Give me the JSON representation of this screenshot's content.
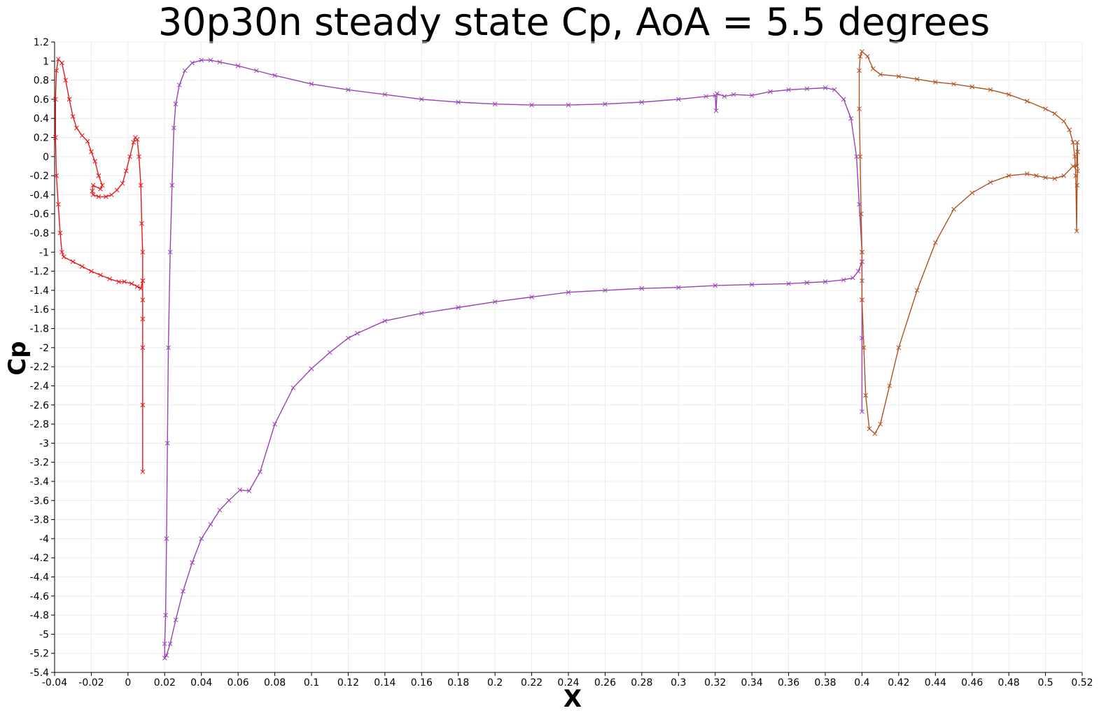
{
  "chart_data": {
    "type": "line",
    "title": "30p30n steady state Cp,  AoA = 5.5 degrees",
    "xlabel": "X",
    "ylabel": "Cp",
    "xlim": [
      -0.04,
      0.52
    ],
    "ylim": [
      -5.4,
      1.2
    ],
    "x_ticks": [
      -0.04,
      -0.02,
      0,
      0.02,
      0.04,
      0.06,
      0.08,
      0.1,
      0.12,
      0.14,
      0.16,
      0.18,
      0.2,
      0.22,
      0.24,
      0.26,
      0.28,
      0.3,
      0.32,
      0.34,
      0.36,
      0.38,
      0.4,
      0.42,
      0.44,
      0.46,
      0.48,
      0.5,
      0.52
    ],
    "x_tick_labels": [
      "-0.04",
      "-0.02",
      "0",
      "0.02",
      "0.04",
      "0.06",
      "0.08",
      "0.1",
      "0.12",
      "0.14",
      "0.16",
      "0.18",
      "0.2",
      "0.22",
      "0.24",
      "0.26",
      "0.28",
      "0.3",
      "0.32",
      "0.34",
      "0.36",
      "0.38",
      "0.4",
      "0.42",
      "0.44",
      "0.46",
      "0.48",
      "0.5",
      "0.52"
    ],
    "y_ticks": [
      1.2,
      1,
      0.8,
      0.6,
      0.4,
      0.2,
      0,
      -0.2,
      -0.4,
      -0.6,
      -0.8,
      -1,
      -1.2,
      -1.4,
      -1.6,
      -1.8,
      -2,
      -2.2,
      -2.4,
      -2.6,
      -2.8,
      -3,
      -3.2,
      -3.4,
      -3.6,
      -3.8,
      -4,
      -4.2,
      -4.4,
      -4.6,
      -4.8,
      -5,
      -5.2,
      -5.4
    ],
    "y_tick_labels": [
      "1.2",
      "1",
      "0.8",
      "0.6",
      "0.4",
      "0.2",
      "0",
      "-0.2",
      "-0.4",
      "-0.6",
      "-0.8",
      "-1",
      "-1.2",
      "-1.4",
      "-1.6",
      "-1.8",
      "-2",
      "-2.2",
      "-2.4",
      "-2.6",
      "-2.8",
      "-3",
      "-3.2",
      "-3.4",
      "-3.6",
      "-3.8",
      "-4",
      "-4.2",
      "-4.4",
      "-4.6",
      "-4.8",
      "-5",
      "-5.2",
      "-5.4"
    ],
    "grid": true,
    "legend": "none",
    "marker": "x",
    "series": [
      {
        "color": "#e4191c",
        "points": [
          [
            0.008,
            -3.3
          ],
          [
            0.008,
            -2.6
          ],
          [
            0.008,
            -2.0
          ],
          [
            0.008,
            -1.7
          ],
          [
            0.008,
            -1.5
          ],
          [
            0.008,
            -1.3
          ],
          [
            0.007,
            -1.38
          ],
          [
            0.005,
            -1.36
          ],
          [
            0.002,
            -1.33
          ],
          [
            -0.002,
            -1.31
          ],
          [
            -0.005,
            -1.31
          ],
          [
            -0.01,
            -1.28
          ],
          [
            -0.015,
            -1.24
          ],
          [
            -0.02,
            -1.2
          ],
          [
            -0.025,
            -1.15
          ],
          [
            -0.03,
            -1.1
          ],
          [
            -0.035,
            -1.05
          ],
          [
            -0.036,
            -1.0
          ],
          [
            -0.037,
            -0.8
          ],
          [
            -0.038,
            -0.5
          ],
          [
            -0.039,
            -0.2
          ],
          [
            -0.0395,
            0.2
          ],
          [
            -0.0395,
            0.6
          ],
          [
            -0.039,
            0.9
          ],
          [
            -0.038,
            1.02
          ],
          [
            -0.036,
            0.98
          ],
          [
            -0.034,
            0.8
          ],
          [
            -0.032,
            0.6
          ],
          [
            -0.03,
            0.42
          ],
          [
            -0.028,
            0.3
          ],
          [
            -0.025,
            0.22
          ],
          [
            -0.022,
            0.16
          ],
          [
            -0.02,
            0.05
          ],
          [
            -0.018,
            -0.05
          ],
          [
            -0.016,
            -0.2
          ],
          [
            -0.014,
            -0.3
          ],
          [
            -0.015,
            -0.34
          ],
          [
            -0.019,
            -0.3
          ],
          [
            -0.0195,
            -0.36
          ],
          [
            -0.019,
            -0.4
          ],
          [
            -0.016,
            -0.42
          ],
          [
            -0.012,
            -0.42
          ],
          [
            -0.009,
            -0.4
          ],
          [
            -0.006,
            -0.35
          ],
          [
            -0.003,
            -0.28
          ],
          [
            -0.001,
            -0.15
          ],
          [
            0.001,
            0.0
          ],
          [
            0.003,
            0.15
          ],
          [
            0.004,
            0.2
          ],
          [
            0.005,
            0.18
          ],
          [
            0.006,
            0.0
          ],
          [
            0.007,
            -0.3
          ],
          [
            0.0075,
            -0.7
          ],
          [
            0.008,
            -1.0
          ],
          [
            0.008,
            -1.3
          ]
        ]
      },
      {
        "color": "#9a42b4",
        "points": [
          [
            0.4,
            -2.67
          ],
          [
            0.4,
            -1.9
          ],
          [
            0.4,
            -1.5
          ],
          [
            0.4,
            -1.3
          ],
          [
            0.4,
            -1.1
          ],
          [
            0.398,
            -1.2
          ],
          [
            0.395,
            -1.27
          ],
          [
            0.39,
            -1.29
          ],
          [
            0.38,
            -1.31
          ],
          [
            0.37,
            -1.32
          ],
          [
            0.36,
            -1.33
          ],
          [
            0.34,
            -1.34
          ],
          [
            0.32,
            -1.35
          ],
          [
            0.3,
            -1.37
          ],
          [
            0.28,
            -1.38
          ],
          [
            0.26,
            -1.4
          ],
          [
            0.24,
            -1.42
          ],
          [
            0.22,
            -1.47
          ],
          [
            0.2,
            -1.52
          ],
          [
            0.18,
            -1.58
          ],
          [
            0.16,
            -1.64
          ],
          [
            0.14,
            -1.72
          ],
          [
            0.125,
            -1.85
          ],
          [
            0.12,
            -1.9
          ],
          [
            0.11,
            -2.05
          ],
          [
            0.1,
            -2.22
          ],
          [
            0.09,
            -2.42
          ],
          [
            0.08,
            -2.8
          ],
          [
            0.072,
            -3.3
          ],
          [
            0.066,
            -3.5
          ],
          [
            0.061,
            -3.49
          ],
          [
            0.055,
            -3.6
          ],
          [
            0.05,
            -3.7
          ],
          [
            0.045,
            -3.85
          ],
          [
            0.04,
            -4.0
          ],
          [
            0.035,
            -4.25
          ],
          [
            0.03,
            -4.55
          ],
          [
            0.026,
            -4.85
          ],
          [
            0.023,
            -5.1
          ],
          [
            0.021,
            -5.22
          ],
          [
            0.02,
            -5.25
          ],
          [
            0.02,
            -5.1
          ],
          [
            0.0205,
            -4.8
          ],
          [
            0.021,
            -4.0
          ],
          [
            0.0215,
            -3.0
          ],
          [
            0.022,
            -2.0
          ],
          [
            0.023,
            -1.0
          ],
          [
            0.024,
            -0.3
          ],
          [
            0.025,
            0.3
          ],
          [
            0.026,
            0.55
          ],
          [
            0.028,
            0.75
          ],
          [
            0.031,
            0.9
          ],
          [
            0.035,
            0.98
          ],
          [
            0.04,
            1.01
          ],
          [
            0.045,
            1.01
          ],
          [
            0.05,
            0.99
          ],
          [
            0.06,
            0.95
          ],
          [
            0.07,
            0.9
          ],
          [
            0.08,
            0.85
          ],
          [
            0.1,
            0.76
          ],
          [
            0.12,
            0.7
          ],
          [
            0.14,
            0.65
          ],
          [
            0.16,
            0.6
          ],
          [
            0.18,
            0.57
          ],
          [
            0.2,
            0.55
          ],
          [
            0.22,
            0.54
          ],
          [
            0.24,
            0.54
          ],
          [
            0.26,
            0.55
          ],
          [
            0.28,
            0.57
          ],
          [
            0.3,
            0.6
          ],
          [
            0.315,
            0.63
          ],
          [
            0.32,
            0.64
          ],
          [
            0.3205,
            0.48
          ],
          [
            0.321,
            0.66
          ],
          [
            0.325,
            0.63
          ],
          [
            0.33,
            0.65
          ],
          [
            0.34,
            0.64
          ],
          [
            0.35,
            0.68
          ],
          [
            0.36,
            0.7
          ],
          [
            0.37,
            0.71
          ],
          [
            0.38,
            0.72
          ],
          [
            0.385,
            0.7
          ],
          [
            0.39,
            0.6
          ],
          [
            0.394,
            0.4
          ],
          [
            0.397,
            0.0
          ],
          [
            0.3985,
            -0.5
          ],
          [
            0.4,
            -1.0
          ],
          [
            0.4,
            -1.1
          ]
        ]
      },
      {
        "color": "#b0521e",
        "points": [
          [
            0.4,
            -1.0
          ],
          [
            0.3995,
            -0.6
          ],
          [
            0.399,
            0.0
          ],
          [
            0.3985,
            0.5
          ],
          [
            0.3985,
            0.9
          ],
          [
            0.399,
            1.05
          ],
          [
            0.4,
            1.1
          ],
          [
            0.403,
            1.05
          ],
          [
            0.406,
            0.92
          ],
          [
            0.41,
            0.86
          ],
          [
            0.42,
            0.84
          ],
          [
            0.43,
            0.81
          ],
          [
            0.44,
            0.78
          ],
          [
            0.45,
            0.76
          ],
          [
            0.46,
            0.73
          ],
          [
            0.47,
            0.7
          ],
          [
            0.48,
            0.65
          ],
          [
            0.49,
            0.58
          ],
          [
            0.5,
            0.5
          ],
          [
            0.505,
            0.45
          ],
          [
            0.51,
            0.37
          ],
          [
            0.513,
            0.28
          ],
          [
            0.515,
            0.15
          ],
          [
            0.516,
            0.0
          ],
          [
            0.5165,
            -0.2
          ],
          [
            0.517,
            -0.78
          ],
          [
            0.5172,
            -0.3
          ],
          [
            0.5175,
            -0.15
          ],
          [
            0.5175,
            0.05
          ],
          [
            0.5173,
            0.15
          ],
          [
            0.517,
            -0.1
          ],
          [
            0.515,
            -0.1
          ],
          [
            0.51,
            -0.2
          ],
          [
            0.505,
            -0.23
          ],
          [
            0.5,
            -0.22
          ],
          [
            0.495,
            -0.2
          ],
          [
            0.49,
            -0.18
          ],
          [
            0.48,
            -0.2
          ],
          [
            0.47,
            -0.27
          ],
          [
            0.46,
            -0.38
          ],
          [
            0.45,
            -0.55
          ],
          [
            0.44,
            -0.9
          ],
          [
            0.43,
            -1.4
          ],
          [
            0.42,
            -2.0
          ],
          [
            0.415,
            -2.4
          ],
          [
            0.41,
            -2.8
          ],
          [
            0.407,
            -2.9
          ],
          [
            0.404,
            -2.85
          ],
          [
            0.402,
            -2.5
          ],
          [
            0.401,
            -2.0
          ],
          [
            0.4,
            -1.5
          ],
          [
            0.4,
            -1.0
          ]
        ]
      }
    ]
  }
}
